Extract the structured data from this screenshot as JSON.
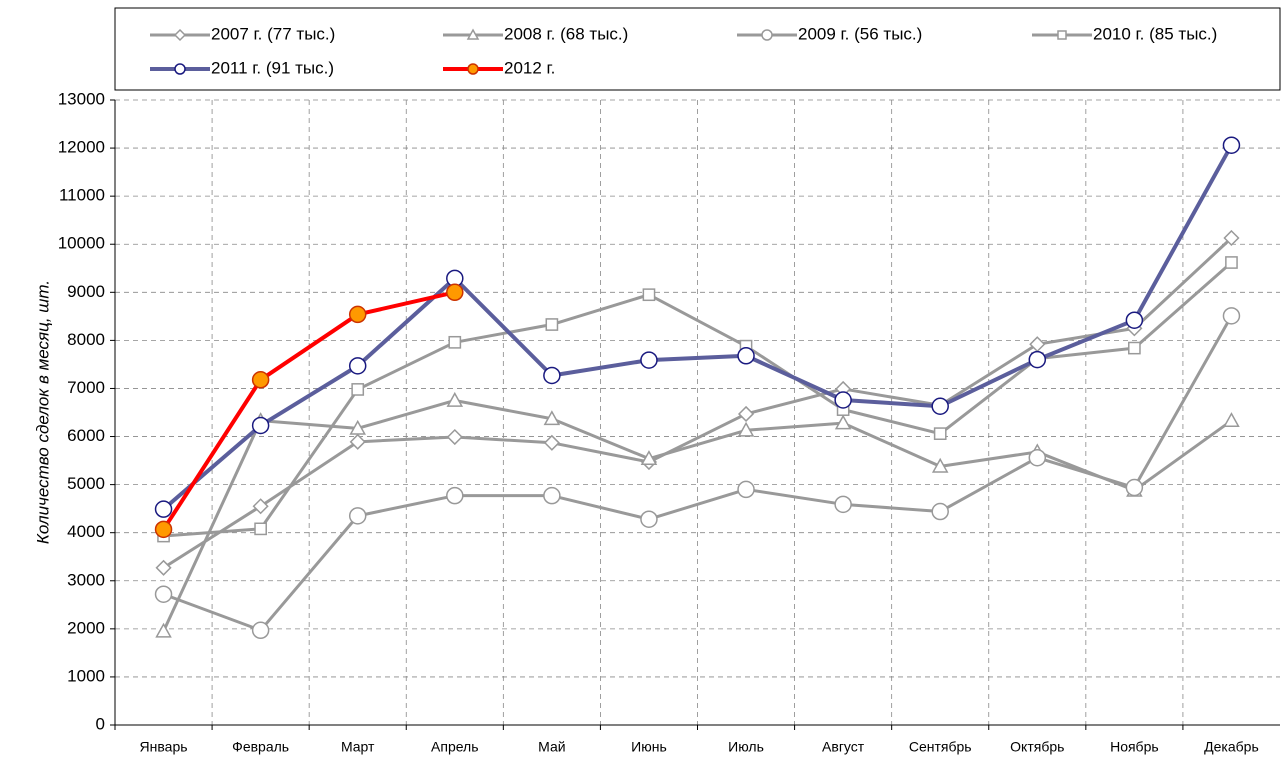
{
  "chart_data": {
    "type": "line",
    "y_label": "Количество сделок в месяц, шт.",
    "categories": [
      "Январь",
      "Февраль",
      "Март",
      "Апрель",
      "Май",
      "Июнь",
      "Июль",
      "Август",
      "Сентябрь",
      "Октябрь",
      "Ноябрь",
      "Декабрь"
    ],
    "series": [
      {
        "name": "2007 г. (77 тыс.)",
        "color": "#999999",
        "marker": "diamond",
        "marker_fill": "#ffffff",
        "marker_stroke": "#999999",
        "values": [
          3270,
          4550,
          5890,
          5990,
          5870,
          5470,
          6470,
          6990,
          6650,
          7920,
          8250,
          10130
        ]
      },
      {
        "name": "2008 г. (68 тыс.)",
        "color": "#999999",
        "marker": "triangle",
        "marker_fill": "#ffffff",
        "marker_stroke": "#999999",
        "values": [
          1950,
          6330,
          6170,
          6750,
          6370,
          5540,
          6130,
          6280,
          5380,
          5680,
          4880,
          6330
        ]
      },
      {
        "name": "2009 г. (56 тыс.)",
        "color": "#999999",
        "marker": "circle",
        "marker_fill": "#ffffff",
        "marker_stroke": "#999999",
        "values": [
          2720,
          1970,
          4350,
          4770,
          4770,
          4280,
          4900,
          4590,
          4440,
          5560,
          4940,
          8510
        ]
      },
      {
        "name": "2010 г. (85 тыс.)",
        "color": "#999999",
        "marker": "square",
        "marker_fill": "#ffffff",
        "marker_stroke": "#999999",
        "values": [
          3930,
          4080,
          6980,
          7960,
          8330,
          8950,
          7880,
          6560,
          6060,
          7620,
          7840,
          9620
        ]
      },
      {
        "name": "2011 г. (91 тыс.)",
        "color": "#5b5e9c",
        "marker": "circle",
        "marker_fill": "#ffffff",
        "marker_stroke": "#1a1a80",
        "values": [
          4490,
          6230,
          7470,
          9290,
          7270,
          7590,
          7680,
          6760,
          6630,
          7600,
          8420,
          12060
        ]
      },
      {
        "name": "2012 г.",
        "color": "#ff0000",
        "marker": "circle",
        "marker_fill": "#ff9900",
        "marker_stroke": "#cc3300",
        "values": [
          4070,
          7180,
          8540,
          9000,
          null,
          null,
          null,
          null,
          null,
          null,
          null,
          null
        ]
      }
    ],
    "ylim": [
      0,
      13000
    ],
    "yticks": [
      0,
      1000,
      2000,
      3000,
      4000,
      5000,
      6000,
      7000,
      8000,
      9000,
      10000,
      11000,
      12000,
      13000
    ],
    "grid": true
  }
}
